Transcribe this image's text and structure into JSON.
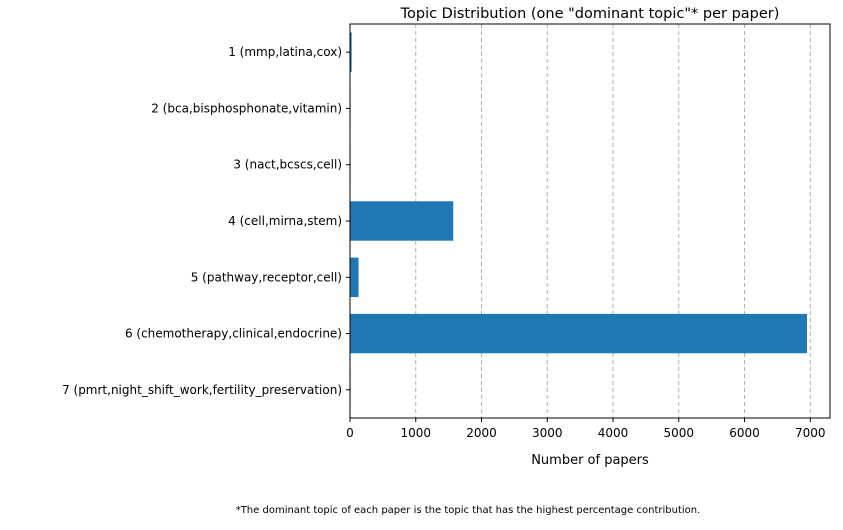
{
  "chart_data": {
    "type": "bar",
    "orientation": "horizontal",
    "title": "Topic Distribution (one \"dominant topic\"* per paper)",
    "xlabel": "Number of papers",
    "ylabel": "",
    "categories": [
      "1 (mmp,latina,cox)",
      "2 (bca,bisphosphonate,vitamin)",
      "3 (nact,bcscs,cell)",
      "4 (cell,mirna,stem)",
      "5 (pathway,receptor,cell)",
      "6 (chemotherapy,clinical,endocrine)",
      "7 (pmrt,night_shift_work,fertility_preservation)"
    ],
    "values": [
      25,
      5,
      3,
      1570,
      130,
      6950,
      2
    ],
    "xlim": [
      0,
      7300
    ],
    "xticks": [
      0,
      1000,
      2000,
      3000,
      4000,
      5000,
      6000,
      7000
    ],
    "xtick_labels": [
      "0",
      "1000",
      "2000",
      "3000",
      "4000",
      "5000",
      "6000",
      "7000"
    ],
    "grid": "x, dashed",
    "bar_color": "#1f77b4",
    "grid_color": "#b0b0b0",
    "footnote": "*The dominant topic of each paper is the topic that has the highest percentage contribution."
  }
}
